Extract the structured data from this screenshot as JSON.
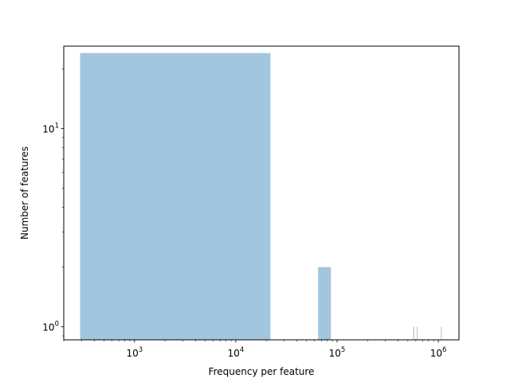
{
  "chart_data": {
    "type": "bar",
    "title": "",
    "xlabel": "Frequency per feature",
    "ylabel": "Number of features",
    "xscale": "log",
    "yscale": "log",
    "xlim": [
      200,
      1600000
    ],
    "ylim": [
      0.86,
      26
    ],
    "grid": false,
    "bar_color": "#a3c6df",
    "x_major_ticks": [
      {
        "value": 1000,
        "base": "10",
        "exp": "3"
      },
      {
        "value": 10000,
        "base": "10",
        "exp": "4"
      },
      {
        "value": 100000,
        "base": "10",
        "exp": "5"
      },
      {
        "value": 1000000,
        "base": "10",
        "exp": "6"
      }
    ],
    "y_major_ticks": [
      {
        "value": 1,
        "base": "10",
        "exp": "0"
      },
      {
        "value": 10,
        "base": "10",
        "exp": "1"
      }
    ],
    "bins": [
      {
        "x0": 290,
        "x1": 22000,
        "count": 24
      },
      {
        "x0": 65000,
        "x1": 87000,
        "count": 2
      },
      {
        "x0": 565000,
        "x1": 578000,
        "count": 1
      },
      {
        "x0": 612000,
        "x1": 623000,
        "count": 1
      },
      {
        "x0": 1060000,
        "x1": 1072000,
        "count": 1
      }
    ]
  }
}
